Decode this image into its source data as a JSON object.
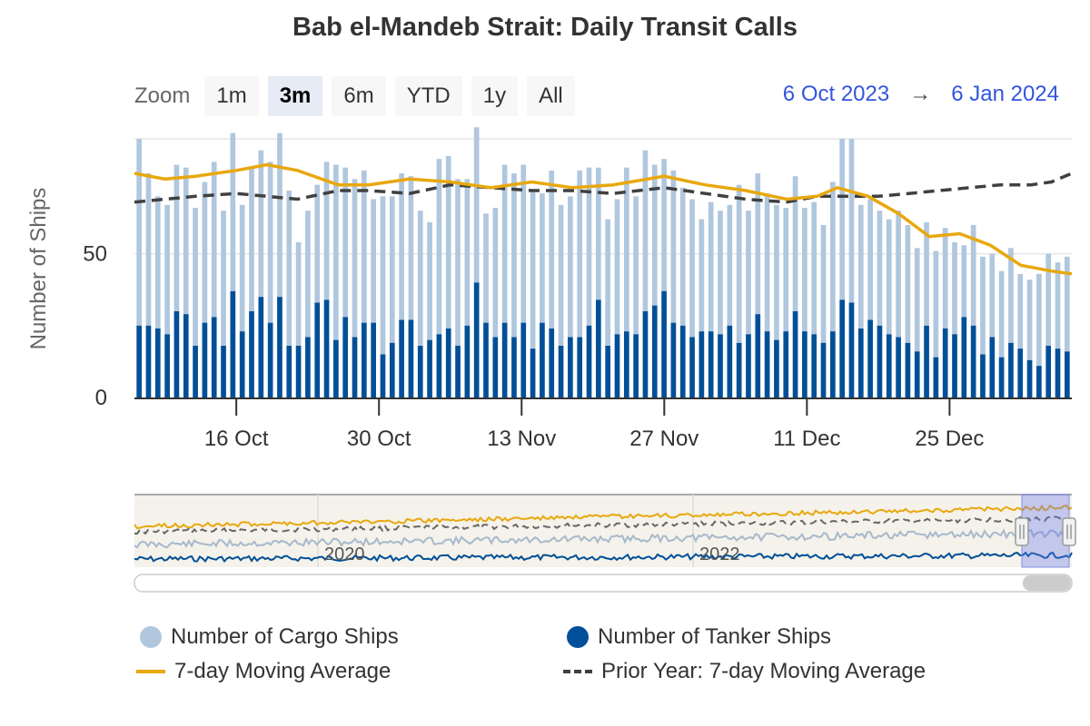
{
  "title": "Bab el-Mandeb Strait: Daily Transit Calls",
  "zoom": {
    "label": "Zoom",
    "buttons": [
      "1m",
      "3m",
      "6m",
      "YTD",
      "1y",
      "All"
    ],
    "active": "3m"
  },
  "range": {
    "from": "6 Oct 2023",
    "arrow": "→",
    "to": "6 Jan 2024"
  },
  "navigator": {
    "year_labels": [
      "2020",
      "2022"
    ]
  },
  "colors": {
    "cargo": "#b0c7de",
    "tanker": "#004f98",
    "avg": "#e8a80e",
    "prior": "#404040"
  },
  "chart_data": {
    "type": "bar",
    "title": "Bab el-Mandeb Strait: Daily Transit Calls",
    "ylabel": "Number of Ships",
    "ylim": [
      0,
      90
    ],
    "yticks": [
      0,
      50
    ],
    "x_ticks": [
      "16 Oct",
      "30 Oct",
      "13 Nov",
      "27 Nov",
      "11 Dec",
      "25 Dec"
    ],
    "x_start": "2023-10-06",
    "x_end": "2024-01-06",
    "stacked": true,
    "series": [
      {
        "name": "Number of Cargo Ships",
        "kind": "bar",
        "color": "#b0c7de",
        "values": [
          65,
          53,
          46,
          45,
          51,
          51,
          48,
          49,
          54,
          47,
          55,
          44,
          50,
          51,
          56,
          57,
          54,
          36,
          44,
          41,
          48,
          61,
          52,
          55,
          53,
          43,
          55,
          51,
          51,
          50,
          47,
          41,
          61,
          60,
          58,
          51,
          54,
          38,
          45,
          55,
          57,
          55,
          55,
          45,
          55,
          49,
          49,
          58,
          55,
          46,
          44,
          47,
          57,
          48,
          56,
          49,
          46,
          53,
          48,
          48,
          39,
          45,
          43,
          42,
          55,
          43,
          49,
          48,
          47,
          43,
          47,
          43,
          46,
          41,
          52,
          56,
          57,
          43,
          42,
          40,
          40,
          44,
          41,
          36,
          36,
          37,
          35,
          32,
          25,
          35,
          34,
          29,
          30,
          33,
          26,
          28,
          32,
          32,
          30,
          33
        ]
      },
      {
        "name": "Number of Tanker Ships",
        "kind": "bar",
        "color": "#004f98",
        "values": [
          25,
          25,
          24,
          22,
          30,
          29,
          18,
          26,
          28,
          18,
          37,
          23,
          30,
          35,
          26,
          35,
          18,
          18,
          21,
          33,
          34,
          20,
          28,
          21,
          26,
          26,
          15,
          19,
          27,
          27,
          18,
          20,
          22,
          24,
          18,
          25,
          40,
          26,
          21,
          26,
          21,
          26,
          17,
          26,
          24,
          18,
          21,
          21,
          25,
          34,
          18,
          22,
          23,
          22,
          30,
          32,
          37,
          26,
          25,
          21,
          23,
          23,
          22,
          25,
          19,
          22,
          29,
          23,
          20,
          23,
          30,
          23,
          22,
          19,
          23,
          34,
          33,
          24,
          27,
          25,
          22,
          21,
          19,
          16,
          25,
          14,
          24,
          22,
          28,
          25,
          15,
          21,
          14,
          19,
          17,
          13,
          11,
          18,
          17,
          16
        ]
      },
      {
        "name": "7-day Moving Average",
        "kind": "line",
        "color": "#e8a80e",
        "points": [
          [
            "2023-10-06",
            78
          ],
          [
            "2023-10-09",
            76
          ],
          [
            "2023-10-12",
            77
          ],
          [
            "2023-10-16",
            79
          ],
          [
            "2023-10-19",
            81
          ],
          [
            "2023-10-22",
            79
          ],
          [
            "2023-10-26",
            74
          ],
          [
            "2023-10-29",
            74
          ],
          [
            "2023-11-02",
            76
          ],
          [
            "2023-11-06",
            75
          ],
          [
            "2023-11-10",
            73
          ],
          [
            "2023-11-14",
            75
          ],
          [
            "2023-11-18",
            73
          ],
          [
            "2023-11-22",
            74
          ],
          [
            "2023-11-27",
            77
          ],
          [
            "2023-12-01",
            74
          ],
          [
            "2023-12-05",
            72
          ],
          [
            "2023-12-09",
            69
          ],
          [
            "2023-12-12",
            70
          ],
          [
            "2023-12-14",
            73
          ],
          [
            "2023-12-17",
            70
          ],
          [
            "2023-12-20",
            64
          ],
          [
            "2023-12-23",
            56
          ],
          [
            "2023-12-26",
            57
          ],
          [
            "2023-12-29",
            53
          ],
          [
            "2024-01-01",
            46
          ],
          [
            "2024-01-04",
            44
          ],
          [
            "2024-01-06",
            43
          ]
        ]
      },
      {
        "name": "Prior Year: 7-day Moving Average",
        "kind": "line",
        "color": "#404040",
        "points": [
          [
            "2023-10-06",
            68
          ],
          [
            "2023-10-09",
            69
          ],
          [
            "2023-10-12",
            70
          ],
          [
            "2023-10-16",
            71
          ],
          [
            "2023-10-19",
            70
          ],
          [
            "2023-10-22",
            69
          ],
          [
            "2023-10-26",
            72
          ],
          [
            "2023-10-29",
            72
          ],
          [
            "2023-11-02",
            71
          ],
          [
            "2023-11-06",
            74
          ],
          [
            "2023-11-10",
            73
          ],
          [
            "2023-11-14",
            72
          ],
          [
            "2023-11-18",
            72
          ],
          [
            "2023-11-22",
            71
          ],
          [
            "2023-11-27",
            73
          ],
          [
            "2023-12-01",
            71
          ],
          [
            "2023-12-05",
            69
          ],
          [
            "2023-12-09",
            68
          ],
          [
            "2023-12-12",
            70
          ],
          [
            "2023-12-15",
            70
          ],
          [
            "2023-12-18",
            70
          ],
          [
            "2023-12-21",
            71
          ],
          [
            "2023-12-24",
            72
          ],
          [
            "2023-12-27",
            73
          ],
          [
            "2023-12-30",
            74
          ],
          [
            "2024-01-02",
            74
          ],
          [
            "2024-01-04",
            75
          ],
          [
            "2024-01-06",
            78
          ]
        ]
      }
    ],
    "legend": "bottom"
  }
}
